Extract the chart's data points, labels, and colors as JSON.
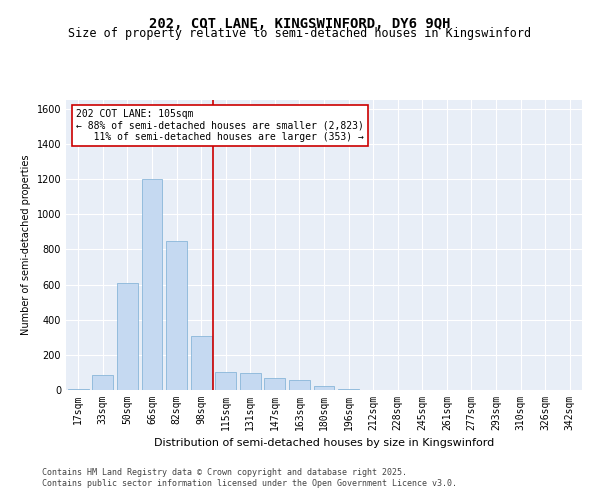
{
  "title1": "202, COT LANE, KINGSWINFORD, DY6 9QH",
  "title2": "Size of property relative to semi-detached houses in Kingswinford",
  "xlabel": "Distribution of semi-detached houses by size in Kingswinford",
  "ylabel": "Number of semi-detached properties",
  "categories": [
    "17sqm",
    "33sqm",
    "50sqm",
    "66sqm",
    "82sqm",
    "98sqm",
    "115sqm",
    "131sqm",
    "147sqm",
    "163sqm",
    "180sqm",
    "196sqm",
    "212sqm",
    "228sqm",
    "245sqm",
    "261sqm",
    "277sqm",
    "293sqm",
    "310sqm",
    "326sqm",
    "342sqm"
  ],
  "values": [
    5,
    85,
    610,
    1200,
    845,
    310,
    105,
    95,
    70,
    55,
    25,
    5,
    0,
    0,
    0,
    0,
    0,
    0,
    0,
    0,
    0
  ],
  "bar_color": "#c5d9f1",
  "bar_edge_color": "#7aadd4",
  "vline_color": "#cc0000",
  "annotation_text": "202 COT LANE: 105sqm\n← 88% of semi-detached houses are smaller (2,823)\n   11% of semi-detached houses are larger (353) →",
  "annotation_box_color": "#ffffff",
  "annotation_box_edge": "#cc0000",
  "ylim": [
    0,
    1650
  ],
  "yticks": [
    0,
    200,
    400,
    600,
    800,
    1000,
    1200,
    1400,
    1600
  ],
  "background_color": "#e8eef7",
  "footer": "Contains HM Land Registry data © Crown copyright and database right 2025.\nContains public sector information licensed under the Open Government Licence v3.0.",
  "title1_fontsize": 10,
  "title2_fontsize": 8.5,
  "xlabel_fontsize": 8,
  "ylabel_fontsize": 7,
  "tick_fontsize": 7,
  "footer_fontsize": 6,
  "ann_fontsize": 7
}
